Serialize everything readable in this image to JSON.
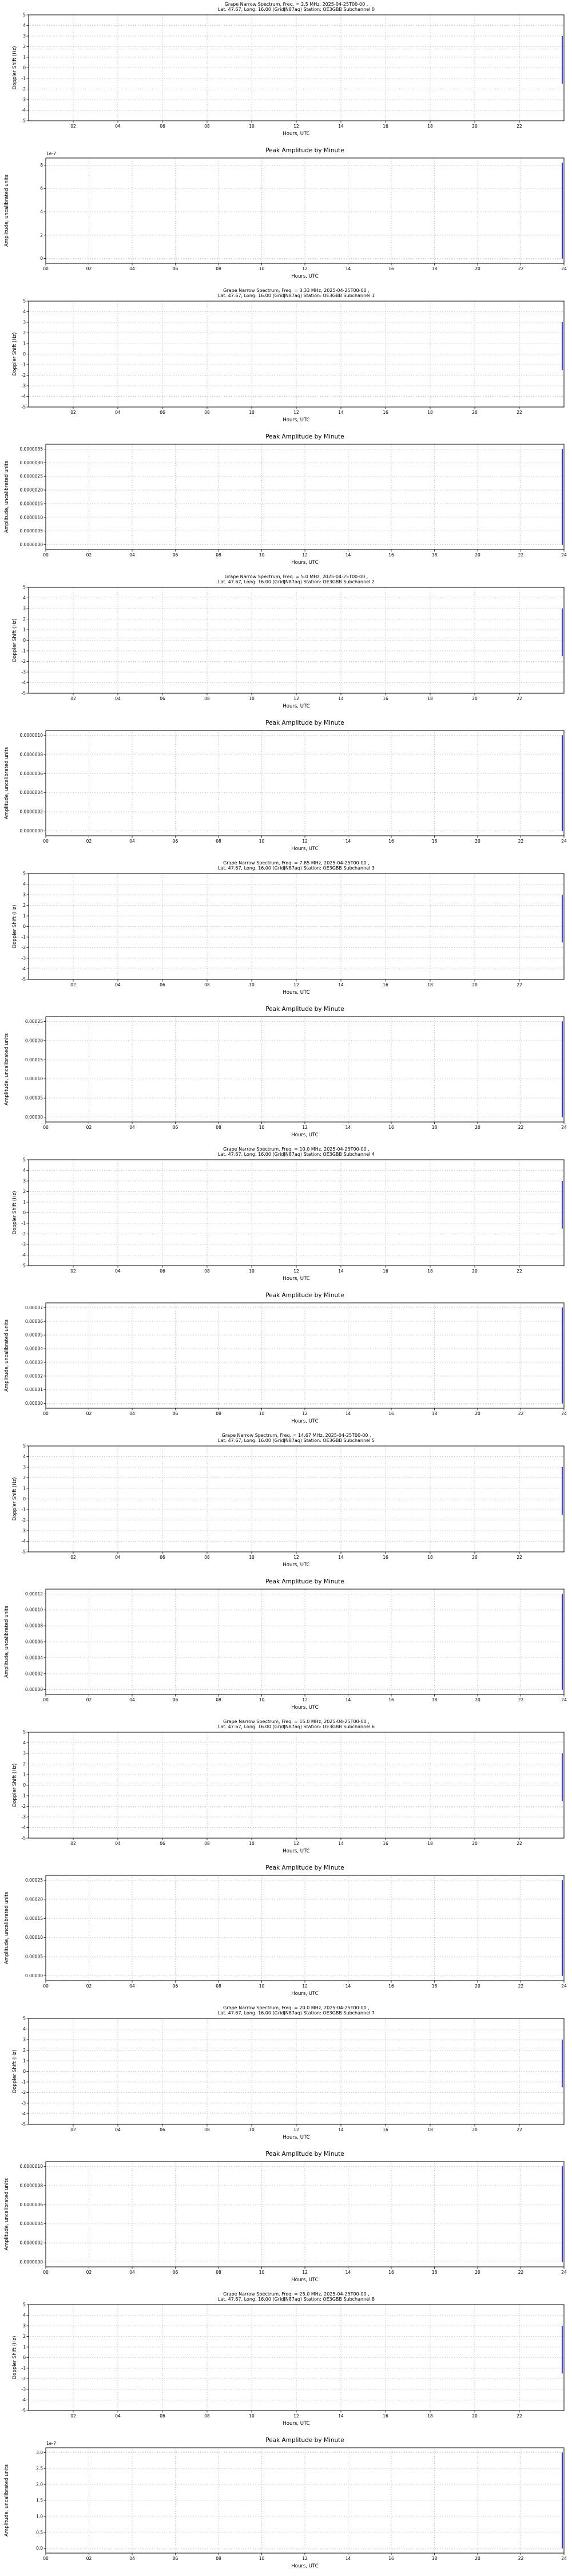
{
  "shared": {
    "xlabel": "Hours, UTC",
    "doppler_ylabel": "Doppler Shift (Hz)",
    "amplitude_ylabel": "Amplitude, uncalibrated units",
    "doppler_xtick_labels": [
      "02",
      "04",
      "06",
      "08",
      "10",
      "12",
      "14",
      "16",
      "18",
      "20",
      "22"
    ],
    "amplitude_xtick_labels": [
      "00",
      "02",
      "04",
      "06",
      "08",
      "10",
      "12",
      "14",
      "16",
      "18",
      "20",
      "22",
      "24"
    ],
    "doppler_ytick_labels": [
      "5",
      "4",
      "3",
      "2",
      "1",
      "0",
      "-1",
      "-2",
      "-3",
      "-4",
      "-5"
    ],
    "grid_color": "#b0b0b0",
    "frame_color": "#000000",
    "trace_color": "#0000ff"
  },
  "chart_data": [
    {
      "type": "line",
      "kind": "doppler",
      "subchannel": 0,
      "title": [
        "Grape Narrow Spectrum, Freq. = 2.5 MHz, 2025-04-25T00-00 ,",
        "Lat. 47.67, Long. 16.00 (GridJN87aq) Station: OE3GBB Subchannel 0"
      ],
      "xlim": [
        0,
        24
      ],
      "ylim": [
        -5,
        5
      ],
      "xticks": [
        2,
        4,
        6,
        8,
        10,
        12,
        14,
        16,
        18,
        20,
        22
      ],
      "yticks": [
        5,
        4,
        3,
        2,
        1,
        0,
        -1,
        -2,
        -3,
        -4,
        -5
      ],
      "series": [
        {
          "name": "doppler-trace",
          "x": [
            23.92,
            23.92
          ],
          "y": [
            3.0,
            -1.5
          ],
          "color": "#0000ff"
        }
      ]
    },
    {
      "type": "line",
      "kind": "amplitude",
      "subchannel": 0,
      "title": [
        "Peak Amplitude by Minute"
      ],
      "xlim": [
        0,
        24
      ],
      "ylim": [
        -0.41,
        8.61
      ],
      "xticks": [
        0,
        2,
        4,
        6,
        8,
        10,
        12,
        14,
        16,
        18,
        20,
        22,
        24
      ],
      "ytick_values": [
        0,
        2,
        4,
        6,
        8
      ],
      "ytick_labels": [
        "0",
        "2",
        "4",
        "6",
        "8"
      ],
      "offset_text": "1e-7",
      "series": [
        {
          "name": "amplitude-spike",
          "x": [
            23.92,
            23.92
          ],
          "y": [
            0,
            8.2
          ],
          "color": "#0000ff"
        }
      ]
    },
    {
      "type": "line",
      "kind": "doppler",
      "subchannel": 1,
      "title": [
        "Grape Narrow Spectrum, Freq. = 3.33 MHz, 2025-04-25T00-00 ,",
        "Lat. 47.67, Long. 16.00 (GridJN87aq) Station: OE3GBB Subchannel 1"
      ],
      "xlim": [
        0,
        24
      ],
      "ylim": [
        -5,
        5
      ],
      "xticks": [
        2,
        4,
        6,
        8,
        10,
        12,
        14,
        16,
        18,
        20,
        22
      ],
      "yticks": [
        5,
        4,
        3,
        2,
        1,
        0,
        -1,
        -2,
        -3,
        -4,
        -5
      ],
      "series": [
        {
          "name": "doppler-trace",
          "x": [
            23.92,
            23.92
          ],
          "y": [
            3.0,
            -1.5
          ],
          "color": "#0000ff"
        }
      ]
    },
    {
      "type": "line",
      "kind": "amplitude",
      "subchannel": 1,
      "title": [
        "Peak Amplitude by Minute"
      ],
      "xlim": [
        0,
        24
      ],
      "ylim": [
        -1.75e-07,
        3.675e-06
      ],
      "xticks": [
        0,
        2,
        4,
        6,
        8,
        10,
        12,
        14,
        16,
        18,
        20,
        22,
        24
      ],
      "ytick_values": [
        0,
        5e-07,
        1e-06,
        1.5e-06,
        2e-06,
        2.5e-06,
        3e-06,
        3.5e-06
      ],
      "ytick_labels": [
        "0.0000000",
        "0.0000005",
        "0.0000010",
        "0.0000015",
        "0.0000020",
        "0.0000025",
        "0.0000030",
        "0.0000035"
      ],
      "series": [
        {
          "name": "amplitude-spike",
          "x": [
            23.92,
            23.92
          ],
          "y": [
            0,
            3.5e-06
          ],
          "color": "#0000ff"
        }
      ]
    },
    {
      "type": "line",
      "kind": "doppler",
      "subchannel": 2,
      "title": [
        "Grape Narrow Spectrum, Freq. = 5.0 MHz, 2025-04-25T00-00 ,",
        "Lat. 47.67, Long. 16.00 (GridJN87aq) Station: OE3GBB Subchannel 2"
      ],
      "xlim": [
        0,
        24
      ],
      "ylim": [
        -5,
        5
      ],
      "xticks": [
        2,
        4,
        6,
        8,
        10,
        12,
        14,
        16,
        18,
        20,
        22
      ],
      "yticks": [
        5,
        4,
        3,
        2,
        1,
        0,
        -1,
        -2,
        -3,
        -4,
        -5
      ],
      "series": [
        {
          "name": "doppler-trace",
          "x": [
            23.92,
            23.92
          ],
          "y": [
            3.0,
            -1.5
          ],
          "color": "#0000ff"
        }
      ]
    },
    {
      "type": "line",
      "kind": "amplitude",
      "subchannel": 2,
      "title": [
        "Peak Amplitude by Minute"
      ],
      "xlim": [
        0,
        24
      ],
      "ylim": [
        -5e-08,
        1.05e-06
      ],
      "xticks": [
        0,
        2,
        4,
        6,
        8,
        10,
        12,
        14,
        16,
        18,
        20,
        22,
        24
      ],
      "ytick_values": [
        0,
        2e-07,
        4e-07,
        6e-07,
        8e-07,
        1e-06
      ],
      "ytick_labels": [
        "0.0000000",
        "0.0000002",
        "0.0000004",
        "0.0000006",
        "0.0000008",
        "0.0000010"
      ],
      "series": [
        {
          "name": "amplitude-spike",
          "x": [
            23.92,
            23.92
          ],
          "y": [
            0,
            1e-06
          ],
          "color": "#0000ff"
        }
      ]
    },
    {
      "type": "line",
      "kind": "doppler",
      "subchannel": 3,
      "title": [
        "Grape Narrow Spectrum, Freq. = 7.85 MHz, 2025-04-25T00-00 ,",
        "Lat. 47.67, Long. 16.00 (GridJN87aq) Station: OE3GBB Subchannel 3"
      ],
      "xlim": [
        0,
        24
      ],
      "ylim": [
        -5,
        5
      ],
      "xticks": [
        2,
        4,
        6,
        8,
        10,
        12,
        14,
        16,
        18,
        20,
        22
      ],
      "yticks": [
        5,
        4,
        3,
        2,
        1,
        0,
        -1,
        -2,
        -3,
        -4,
        -5
      ],
      "series": [
        {
          "name": "doppler-trace",
          "x": [
            23.92,
            23.92
          ],
          "y": [
            3.0,
            -1.5
          ],
          "color": "#0000ff"
        }
      ]
    },
    {
      "type": "line",
      "kind": "amplitude",
      "subchannel": 3,
      "title": [
        "Peak Amplitude by Minute"
      ],
      "xlim": [
        0,
        24
      ],
      "ylim": [
        -1.25e-05,
        0.0002625
      ],
      "xticks": [
        0,
        2,
        4,
        6,
        8,
        10,
        12,
        14,
        16,
        18,
        20,
        22,
        24
      ],
      "ytick_values": [
        0,
        5e-05,
        0.0001,
        0.00015,
        0.0002,
        0.00025
      ],
      "ytick_labels": [
        "0.00000",
        "0.00005",
        "0.00010",
        "0.00015",
        "0.00020",
        "0.00025"
      ],
      "series": [
        {
          "name": "amplitude-spike",
          "x": [
            23.92,
            23.92
          ],
          "y": [
            0,
            0.00025
          ],
          "color": "#0000ff"
        }
      ]
    },
    {
      "type": "line",
      "kind": "doppler",
      "subchannel": 4,
      "title": [
        "Grape Narrow Spectrum, Freq. = 10.0 MHz, 2025-04-25T00-00 ,",
        "Lat. 47.67, Long. 16.00 (GridJN87aq) Station: OE3GBB Subchannel 4"
      ],
      "xlim": [
        0,
        24
      ],
      "ylim": [
        -5,
        5
      ],
      "xticks": [
        2,
        4,
        6,
        8,
        10,
        12,
        14,
        16,
        18,
        20,
        22
      ],
      "yticks": [
        5,
        4,
        3,
        2,
        1,
        0,
        -1,
        -2,
        -3,
        -4,
        -5
      ],
      "series": [
        {
          "name": "doppler-trace",
          "x": [
            23.92,
            23.92
          ],
          "y": [
            3.0,
            -1.5
          ],
          "color": "#0000ff"
        }
      ]
    },
    {
      "type": "line",
      "kind": "amplitude",
      "subchannel": 4,
      "title": [
        "Peak Amplitude by Minute"
      ],
      "xlim": [
        0,
        24
      ],
      "ylim": [
        -3.5e-06,
        7.35e-05
      ],
      "xticks": [
        0,
        2,
        4,
        6,
        8,
        10,
        12,
        14,
        16,
        18,
        20,
        22,
        24
      ],
      "ytick_values": [
        0,
        1e-05,
        2e-05,
        3e-05,
        4e-05,
        5e-05,
        6e-05,
        7e-05
      ],
      "ytick_labels": [
        "0.00000",
        "0.00001",
        "0.00002",
        "0.00003",
        "0.00004",
        "0.00005",
        "0.00006",
        "0.00007"
      ],
      "series": [
        {
          "name": "amplitude-spike",
          "x": [
            23.92,
            23.92
          ],
          "y": [
            0,
            7e-05
          ],
          "color": "#0000ff"
        }
      ]
    },
    {
      "type": "line",
      "kind": "doppler",
      "subchannel": 5,
      "title": [
        "Grape Narrow Spectrum, Freq. = 14.67 MHz, 2025-04-25T00-00 ,",
        "Lat. 47.67, Long. 16.00 (GridJN87aq) Station: OE3GBB Subchannel 5"
      ],
      "xlim": [
        0,
        24
      ],
      "ylim": [
        -5,
        5
      ],
      "xticks": [
        2,
        4,
        6,
        8,
        10,
        12,
        14,
        16,
        18,
        20,
        22
      ],
      "yticks": [
        5,
        4,
        3,
        2,
        1,
        0,
        -1,
        -2,
        -3,
        -4,
        -5
      ],
      "series": [
        {
          "name": "doppler-trace",
          "x": [
            23.92,
            23.92
          ],
          "y": [
            3.0,
            -1.5
          ],
          "color": "#0000ff"
        }
      ]
    },
    {
      "type": "line",
      "kind": "amplitude",
      "subchannel": 5,
      "title": [
        "Peak Amplitude by Minute"
      ],
      "xlim": [
        0,
        24
      ],
      "ylim": [
        -6e-06,
        0.000126
      ],
      "xticks": [
        0,
        2,
        4,
        6,
        8,
        10,
        12,
        14,
        16,
        18,
        20,
        22,
        24
      ],
      "ytick_values": [
        0,
        2e-05,
        4e-05,
        6e-05,
        8e-05,
        0.0001,
        0.00012
      ],
      "ytick_labels": [
        "0.00000",
        "0.00002",
        "0.00004",
        "0.00006",
        "0.00008",
        "0.00010",
        "0.00012"
      ],
      "series": [
        {
          "name": "amplitude-spike",
          "x": [
            23.92,
            23.92
          ],
          "y": [
            0,
            0.00012
          ],
          "color": "#0000ff"
        }
      ]
    },
    {
      "type": "line",
      "kind": "doppler",
      "subchannel": 6,
      "title": [
        "Grape Narrow Spectrum, Freq. = 15.0 MHz, 2025-04-25T00-00 ,",
        "Lat. 47.67, Long. 16.00 (GridJN87aq) Station: OE3GBB Subchannel 6"
      ],
      "xlim": [
        0,
        24
      ],
      "ylim": [
        -5,
        5
      ],
      "xticks": [
        2,
        4,
        6,
        8,
        10,
        12,
        14,
        16,
        18,
        20,
        22
      ],
      "yticks": [
        5,
        4,
        3,
        2,
        1,
        0,
        -1,
        -2,
        -3,
        -4,
        -5
      ],
      "series": [
        {
          "name": "doppler-trace",
          "x": [
            23.92,
            23.92
          ],
          "y": [
            3.0,
            -1.5
          ],
          "color": "#0000ff"
        }
      ]
    },
    {
      "type": "line",
      "kind": "amplitude",
      "subchannel": 6,
      "title": [
        "Peak Amplitude by Minute"
      ],
      "xlim": [
        0,
        24
      ],
      "ylim": [
        -1.25e-05,
        0.0002625
      ],
      "xticks": [
        0,
        2,
        4,
        6,
        8,
        10,
        12,
        14,
        16,
        18,
        20,
        22,
        24
      ],
      "ytick_values": [
        0,
        5e-05,
        0.0001,
        0.00015,
        0.0002,
        0.00025
      ],
      "ytick_labels": [
        "0.00000",
        "0.00005",
        "0.00010",
        "0.00015",
        "0.00020",
        "0.00025"
      ],
      "series": [
        {
          "name": "amplitude-spike",
          "x": [
            23.92,
            23.92
          ],
          "y": [
            0,
            0.00025
          ],
          "color": "#0000ff"
        }
      ]
    },
    {
      "type": "line",
      "kind": "doppler",
      "subchannel": 7,
      "title": [
        "Grape Narrow Spectrum, Freq. = 20.0 MHz, 2025-04-25T00-00 ,",
        "Lat. 47.67, Long. 16.00 (GridJN87aq) Station: OE3GBB Subchannel 7"
      ],
      "xlim": [
        0,
        24
      ],
      "ylim": [
        -5,
        5
      ],
      "xticks": [
        2,
        4,
        6,
        8,
        10,
        12,
        14,
        16,
        18,
        20,
        22
      ],
      "yticks": [
        5,
        4,
        3,
        2,
        1,
        0,
        -1,
        -2,
        -3,
        -4,
        -5
      ],
      "series": [
        {
          "name": "doppler-trace",
          "x": [
            23.92,
            23.92
          ],
          "y": [
            3.0,
            -1.5
          ],
          "color": "#0000ff"
        }
      ]
    },
    {
      "type": "line",
      "kind": "amplitude",
      "subchannel": 7,
      "title": [
        "Peak Amplitude by Minute"
      ],
      "xlim": [
        0,
        24
      ],
      "ylim": [
        -5e-08,
        1.05e-06
      ],
      "xticks": [
        0,
        2,
        4,
        6,
        8,
        10,
        12,
        14,
        16,
        18,
        20,
        22,
        24
      ],
      "ytick_values": [
        0,
        2e-07,
        4e-07,
        6e-07,
        8e-07,
        1e-06
      ],
      "ytick_labels": [
        "0.0000000",
        "0.0000002",
        "0.0000004",
        "0.0000006",
        "0.0000008",
        "0.0000010"
      ],
      "series": [
        {
          "name": "amplitude-spike",
          "x": [
            23.92,
            23.92
          ],
          "y": [
            0,
            1e-06
          ],
          "color": "#0000ff"
        }
      ]
    },
    {
      "type": "line",
      "kind": "doppler",
      "subchannel": 8,
      "title": [
        "Grape Narrow Spectrum, Freq. = 25.0 MHz, 2025-04-25T00-00 ,",
        "Lat. 47.67, Long. 16.00 (GridJN87aq) Station: OE3GBB Subchannel 8"
      ],
      "xlim": [
        0,
        24
      ],
      "ylim": [
        -5,
        5
      ],
      "xticks": [
        2,
        4,
        6,
        8,
        10,
        12,
        14,
        16,
        18,
        20,
        22
      ],
      "yticks": [
        5,
        4,
        3,
        2,
        1,
        0,
        -1,
        -2,
        -3,
        -4,
        -5
      ],
      "series": [
        {
          "name": "doppler-trace",
          "x": [
            23.92,
            23.92
          ],
          "y": [
            3.0,
            -1.5
          ],
          "color": "#0000ff"
        }
      ]
    },
    {
      "type": "line",
      "kind": "amplitude",
      "subchannel": 8,
      "title": [
        "Peak Amplitude by Minute"
      ],
      "xlim": [
        0,
        24
      ],
      "ylim": [
        -0.15,
        3.15
      ],
      "xticks": [
        0,
        2,
        4,
        6,
        8,
        10,
        12,
        14,
        16,
        18,
        20,
        22,
        24
      ],
      "ytick_values": [
        0,
        0.5,
        1,
        1.5,
        2,
        2.5,
        3
      ],
      "ytick_labels": [
        "0.0",
        "0.5",
        "1.0",
        "1.5",
        "2.0",
        "2.5",
        "3.0"
      ],
      "offset_text": "1e-7",
      "series": [
        {
          "name": "amplitude-spike",
          "x": [
            23.92,
            23.92
          ],
          "y": [
            0,
            3.0
          ],
          "color": "#0000ff"
        }
      ]
    }
  ]
}
